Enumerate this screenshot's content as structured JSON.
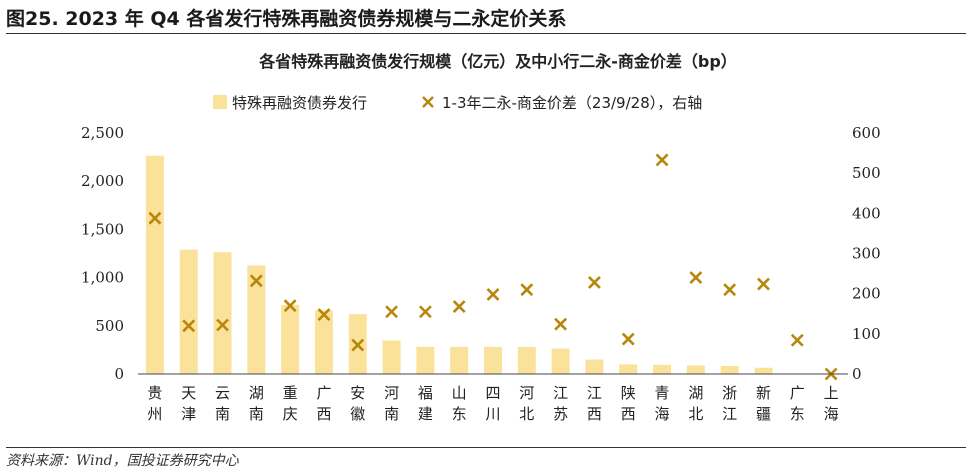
{
  "figure": {
    "title": "图25. 2023 年 Q4 各省发行特殊再融资债券规模与二永定价关系",
    "source": "资料来源：Wind，国投证券研究中心"
  },
  "chart_data": {
    "type": "bar",
    "title": "各省特殊再融资债发行规模（亿元）及中小行二永-商金价差（bp）",
    "categories": [
      "贵州",
      "天津",
      "云南",
      "湖南",
      "重庆",
      "广西",
      "安徽",
      "河南",
      "福建",
      "山东",
      "四川",
      "河北",
      "江苏",
      "江西",
      "陕西",
      "青海",
      "湖北",
      "浙江",
      "新疆",
      "广东",
      "上海"
    ],
    "series": [
      {
        "name": "特殊再融资债券发行",
        "kind": "bar",
        "axis": "left",
        "color": "#FBE29B",
        "values": [
          2264,
          1290,
          1264,
          1126,
          717,
          660,
          621,
          348,
          282,
          282,
          281,
          280,
          263,
          150,
          100,
          95,
          90,
          83,
          65,
          0,
          0
        ]
      },
      {
        "name": "1-3年二永-商金价差（23/9/28），右轴",
        "kind": "scatter",
        "axis": "right",
        "color": "#B8860B",
        "values": [
          388,
          120,
          122,
          232,
          170,
          148,
          72,
          155,
          155,
          168,
          198,
          210,
          124,
          228,
          87,
          533,
          240,
          210,
          224,
          84,
          0
        ]
      }
    ],
    "y_left": {
      "min": 0,
      "max": 2500,
      "step": 500,
      "tick_labels": [
        "0",
        "500",
        "1,000",
        "1,500",
        "2,000",
        "2,500"
      ]
    },
    "y_right": {
      "min": 0,
      "max": 600,
      "step": 100,
      "tick_labels": [
        "0",
        "100",
        "200",
        "300",
        "400",
        "500",
        "600"
      ]
    },
    "legend_placement": "top-left",
    "grid": false
  }
}
